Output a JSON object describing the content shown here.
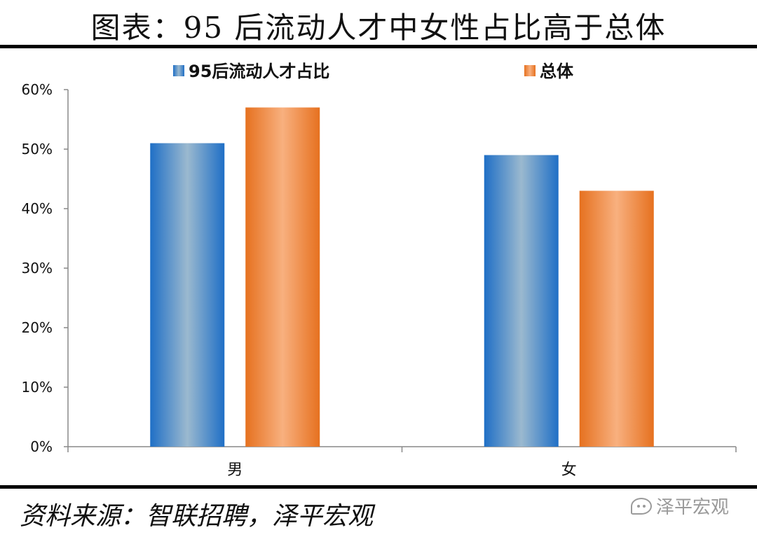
{
  "page": {
    "title": "图表：95 后流动人才中女性占比高于总体",
    "source": "资料来源：智联招聘，泽平宏观",
    "watermark": "泽平宏观"
  },
  "chart_data": {
    "type": "bar",
    "title": "",
    "xlabel": "",
    "ylabel": "",
    "categories": [
      "男",
      "女"
    ],
    "series": [
      {
        "name": "95后流动人才占比",
        "values": [
          51,
          49
        ],
        "colors": {
          "edge": "#1f6fc6",
          "mid": "#9bb9cf"
        }
      },
      {
        "name": "总体",
        "values": [
          57,
          43
        ],
        "colors": {
          "edge": "#e6711f",
          "mid": "#f8b07f"
        }
      }
    ],
    "ylim": [
      0,
      60
    ],
    "yticks": [
      0,
      10,
      20,
      30,
      40,
      50,
      60
    ],
    "ytick_labels": [
      "0%",
      "10%",
      "20%",
      "30%",
      "40%",
      "50%",
      "60%"
    ],
    "grid": false,
    "legend_position": "top"
  }
}
